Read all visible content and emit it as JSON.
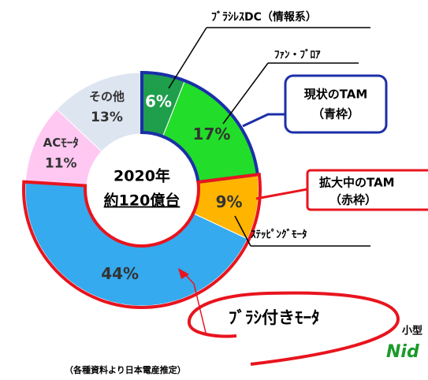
{
  "chart_data": {
    "type": "pie",
    "categories": [
      "ﾌﾞﾗｼﾚｽDC（情報系）",
      "ﾌｧﾝ・ﾌﾞﾛｱ",
      "ｽﾃｯﾋﾟﾝｸﾞﾓｰﾀ",
      "ﾌﾞﾗｼ付きﾓｰﾀ",
      "ACﾓｰﾀ",
      "その他"
    ],
    "values": [
      6,
      17,
      9,
      44,
      11,
      13
    ],
    "value_labels": [
      "6%",
      "17%",
      "9%",
      "44%",
      "11%",
      "13%"
    ],
    "colors": [
      "#1f9e4c",
      "#22dd2a",
      "#ffb400",
      "#35aaee",
      "#ffc8f2",
      "#dde5f0"
    ],
    "center_label": [
      "2020年",
      "約120億台"
    ],
    "callouts": [
      {
        "lines": [
          "現状のTAM",
          "（青枠）"
        ],
        "color": "#1b2fa8"
      },
      {
        "lines": [
          "拡大中のTAM",
          "（赤枠）"
        ],
        "color": "#e8141e"
      }
    ],
    "footnote": "（各種資料より日本電産推定）",
    "side_text": "小型",
    "logo_text": "Nid"
  }
}
